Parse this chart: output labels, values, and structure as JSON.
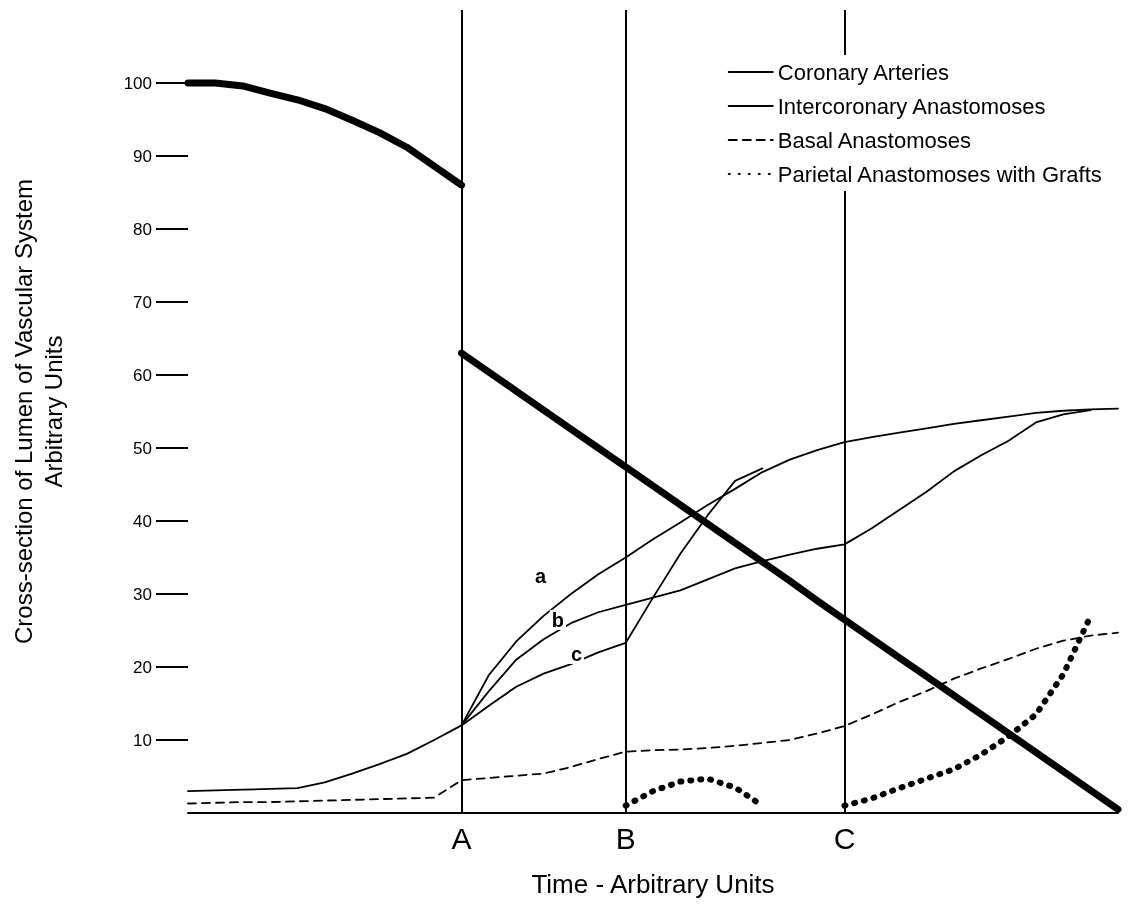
{
  "chart_data": {
    "type": "line",
    "xlabel": "Time - Arbitrary Units",
    "ylabel": "Cross-section of Lumen of Vascular System\nArbitrary Units",
    "categories": [
      null,
      null,
      null,
      null,
      null,
      null,
      null,
      null,
      null,
      null,
      "A",
      null,
      null,
      null,
      null,
      null,
      "B",
      null,
      null,
      null,
      null,
      null,
      null,
      null,
      "C",
      null,
      null,
      null,
      null,
      null,
      null,
      null,
      null,
      null,
      null
    ],
    "ylim": [
      0,
      110
    ],
    "yticks": [
      10,
      20,
      30,
      40,
      50,
      60,
      70,
      80,
      90,
      100
    ],
    "grid": false,
    "legend": "top right",
    "marker": "none",
    "ref_lines": [
      {
        "axis": "x",
        "value": "A",
        "color": "#000000"
      },
      {
        "axis": "x",
        "value": "B",
        "color": "#000000"
      },
      {
        "axis": "x",
        "value": "C",
        "color": "#000000"
      }
    ],
    "annotations": [
      "a",
      "b",
      "c"
    ],
    "series": [
      {
        "name": "Coronary Arteries",
        "color": "#000000",
        "line_style": "solid",
        "values": [
          100,
          100,
          99.6,
          98.6,
          97.7,
          96.5,
          94.9,
          93.2,
          91.2,
          88.6,
          86,
          null,
          null,
          null,
          null,
          null,
          null,
          null,
          null,
          null,
          null,
          null,
          null,
          null,
          null,
          null,
          null,
          null,
          null,
          null,
          null,
          null,
          null,
          null,
          null
        ]
      },
      {
        "color": "#000000",
        "line_style": "solid",
        "values": [
          null,
          null,
          null,
          null,
          null,
          null,
          null,
          null,
          null,
          null,
          63,
          60.4,
          57.8,
          55.2,
          52.6,
          50,
          47.4,
          44.8,
          42.2,
          39.6,
          37,
          34.4,
          31.8,
          29.1,
          26.5,
          23.9,
          21.3,
          18.7,
          16.1,
          13.5,
          10.9,
          8.3,
          5.7,
          3.1,
          0.5
        ]
      },
      {
        "name": "Intercoronary Anastomoses",
        "color": "#000000",
        "line_style": "solid",
        "values": [
          3,
          3.1,
          3.2,
          3.3,
          3.4,
          4.2,
          5.4,
          6.7,
          8.1,
          10,
          12,
          18.9,
          23.5,
          27,
          30,
          32.7,
          35,
          37.5,
          39.8,
          42.2,
          44.4,
          46.7,
          48.4,
          49.7,
          50.8,
          51.5,
          52.1,
          52.7,
          53.3,
          53.8,
          54.3,
          54.8,
          55.1,
          55.3,
          55.4
        ]
      },
      {
        "color": "#000000",
        "line_style": "solid",
        "values": [
          null,
          null,
          null,
          null,
          null,
          null,
          null,
          null,
          null,
          null,
          12,
          16.7,
          21,
          23.8,
          26,
          27.5,
          28.5,
          29.5,
          30.5,
          32,
          33.5,
          34.5,
          35.4,
          36.2,
          36.8,
          39,
          41.5,
          44,
          46.8,
          49,
          51,
          53.5,
          54.6,
          55.2,
          null
        ]
      },
      {
        "color": "#000000",
        "line_style": "solid",
        "values": [
          null,
          null,
          null,
          null,
          null,
          null,
          null,
          null,
          null,
          null,
          12,
          14.7,
          17.3,
          19.1,
          20.4,
          22,
          23.3,
          29.5,
          35.5,
          40.8,
          45.5,
          47.2,
          null,
          null,
          null,
          null,
          null,
          null,
          null,
          null,
          null,
          null,
          null,
          null,
          null
        ]
      },
      {
        "name": "Basal Anastomoses",
        "color": "#000000",
        "line_style": "dashed",
        "values": [
          1.3,
          1.4,
          1.5,
          1.5,
          1.6,
          1.7,
          1.8,
          1.9,
          2,
          2.1,
          4.5,
          4.8,
          5.1,
          5.4,
          6.3,
          7.4,
          8.4,
          8.6,
          8.7,
          8.9,
          9.2,
          9.6,
          10,
          10.9,
          11.9,
          13.5,
          15.2,
          16.7,
          18.4,
          19.8,
          21.1,
          22.5,
          23.6,
          24.3,
          24.7
        ]
      },
      {
        "name": "Parietal Anastomoses with Grafts",
        "color": "#000000",
        "line_style": "dotted",
        "values": [
          null,
          null,
          null,
          null,
          null,
          null,
          null,
          null,
          null,
          null,
          null,
          null,
          null,
          null,
          null,
          null,
          1,
          3,
          4.3,
          4.7,
          3.5,
          1,
          null,
          null,
          null,
          null,
          null,
          null,
          null,
          null,
          null,
          null,
          null,
          null,
          null
        ]
      },
      {
        "color": "#000000",
        "line_style": "dotted",
        "values": [
          null,
          null,
          null,
          null,
          null,
          null,
          null,
          null,
          null,
          null,
          null,
          null,
          null,
          null,
          null,
          null,
          null,
          null,
          null,
          null,
          null,
          null,
          null,
          null,
          1,
          2,
          3.4,
          4.7,
          6,
          8,
          10.5,
          13.5,
          19,
          27,
          null
        ]
      }
    ]
  }
}
